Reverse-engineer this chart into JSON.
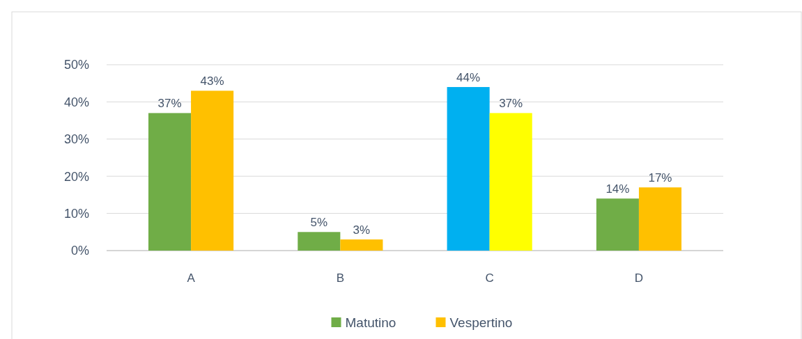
{
  "chart_data": {
    "type": "bar",
    "categories": [
      "A",
      "B",
      "C",
      "D"
    ],
    "series": [
      {
        "name": "Matutino",
        "color": "#70ad47",
        "colors": [
          "#70ad47",
          "#70ad47",
          "#00b0f0",
          "#70ad47"
        ],
        "values": [
          37,
          5,
          44,
          14
        ],
        "value_labels": [
          "37%",
          "5%",
          "44%",
          "14%"
        ]
      },
      {
        "name": "Vespertino",
        "color": "#ffc000",
        "colors": [
          "#ffc000",
          "#ffc000",
          "#ffff00",
          "#ffc000"
        ],
        "values": [
          43,
          3,
          37,
          17
        ],
        "value_labels": [
          "43%",
          "3%",
          "37%",
          "17%"
        ]
      }
    ],
    "ylim": [
      0,
      50
    ],
    "yticks": [
      {
        "value": 0,
        "label": "0%"
      },
      {
        "value": 10,
        "label": "10%"
      },
      {
        "value": 20,
        "label": "20%"
      },
      {
        "value": 30,
        "label": "30%"
      },
      {
        "value": 40,
        "label": "40%"
      },
      {
        "value": 50,
        "label": "50%"
      }
    ],
    "grid": "y",
    "legend": "bottom"
  }
}
